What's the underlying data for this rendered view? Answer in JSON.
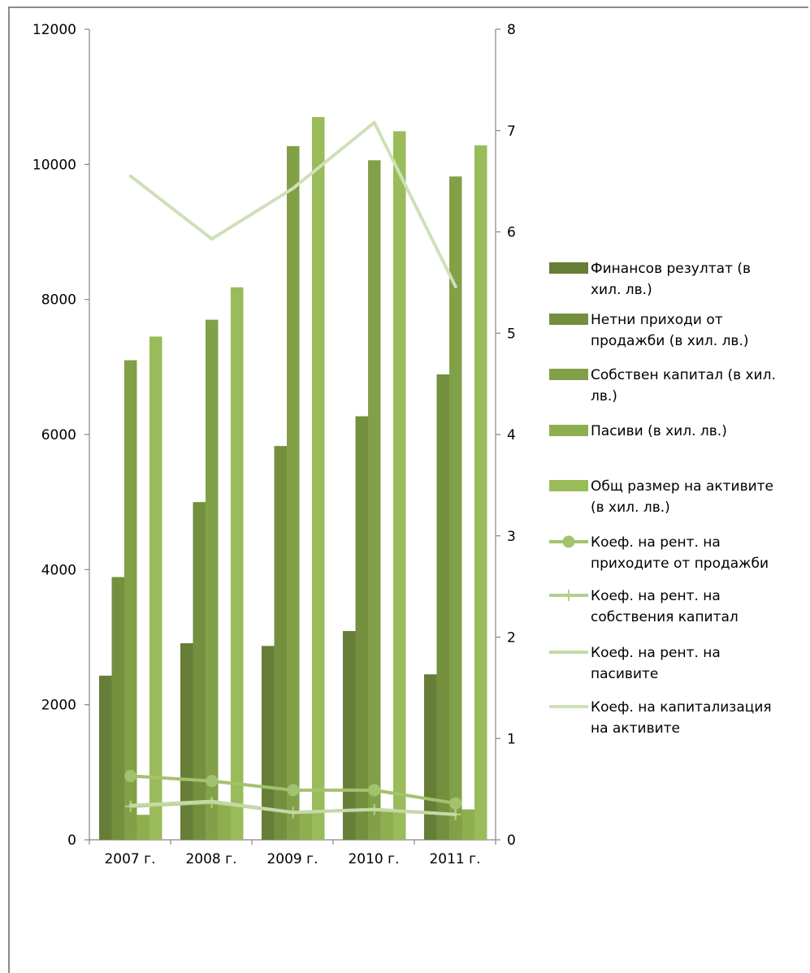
{
  "chart_data": {
    "type": "bar",
    "categories": [
      "2007 г.",
      "2008 г.",
      "2009 г.",
      "2010 г.",
      "2011 г."
    ],
    "y_left": {
      "min": 0,
      "max": 12000,
      "ticks": [
        "0",
        "2000",
        "4000",
        "6000",
        "8000",
        "10000",
        "12000"
      ]
    },
    "y_right": {
      "min": 0,
      "max": 8,
      "ticks": [
        "0",
        "1",
        "2",
        "3",
        "4",
        "5",
        "6",
        "7",
        "8"
      ]
    },
    "legend_position": "right",
    "grid": false,
    "bar_series": [
      {
        "name": "Финансов резултат (в хил. лв.)",
        "color": "#667e37",
        "values": [
          2430,
          2910,
          2870,
          3090,
          2450
        ]
      },
      {
        "name": "Нетни приходи от продажби (в хил. лв.)",
        "color": "#74903f",
        "values": [
          3890,
          5000,
          5830,
          6270,
          6890
        ]
      },
      {
        "name": "Собствен капитал (в хил. лв.)",
        "color": "#82a047",
        "values": [
          7100,
          7700,
          10270,
          10060,
          9820
        ]
      },
      {
        "name": "Пасиви (в хил. лв.)",
        "color": "#8eaf4f",
        "values": [
          370,
          530,
          390,
          440,
          450
        ]
      },
      {
        "name": "Общ размер на активите (в хил. лв.)",
        "color": "#9abb59",
        "values": [
          7450,
          8180,
          10700,
          10490,
          10280
        ]
      }
    ],
    "line_series": [
      {
        "name": "Коеф. на рент. на приходите от продажби",
        "color": "#a3c26e",
        "marker": "circle",
        "values": [
          0.63,
          0.58,
          0.49,
          0.49,
          0.36
        ]
      },
      {
        "name": "Коеф. на рент. на собствения капитал",
        "color": "#b4cf8c",
        "marker": "plus",
        "values": [
          0.33,
          0.37,
          0.27,
          0.3,
          0.25
        ]
      },
      {
        "name": "Коеф. на рент. на пасивите",
        "color": "#c4d9a6",
        "marker": "none",
        "values": [
          0.34,
          0.38,
          0.27,
          0.3,
          0.25
        ]
      },
      {
        "name": "Коеф. на капитализация на активите",
        "color": "#cfe0b8",
        "marker": "none",
        "values": [
          6.55,
          5.93,
          6.43,
          7.08,
          5.46
        ]
      }
    ]
  }
}
